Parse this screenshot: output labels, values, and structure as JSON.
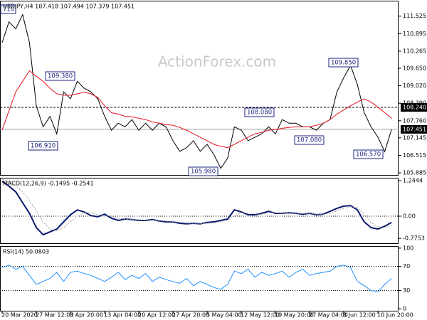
{
  "chart_data": [
    {
      "type": "line",
      "title": "USDJPY,H4  107.418 107.494 107.379 107.451",
      "watermark": "ActionForex.com",
      "categories": [
        "20 Mar 2020",
        null,
        null,
        null,
        null,
        "27 Mar 12:00",
        null,
        null,
        null,
        null,
        "3 Apr 20:00",
        null,
        null,
        null,
        null,
        "13 Apr 04:00",
        null,
        null,
        null,
        null,
        "20 Apr 12:00",
        null,
        null,
        null,
        null,
        "27 Apr 20:00",
        null,
        null,
        null,
        null,
        "5 May 04:00",
        null,
        null,
        null,
        null,
        "12 May 12:00",
        null,
        null,
        null,
        null,
        "19 May 20:00",
        null,
        null,
        null,
        null,
        "27 May 04:00",
        null,
        null,
        null,
        null,
        "3 Jun 12:00",
        null,
        null,
        null,
        null,
        "10 Jun 20:00",
        null,
        null
      ],
      "ylim": [
        105.81,
        112.08
      ],
      "yticks": [
        111.525,
        110.895,
        110.265,
        {
          "value": 109.65,
          "label": "109.650"
        },
        {
          "value": 109.02,
          "label": "109.020"
        },
        {
          "value": 108.39,
          "label": "108.390"
        },
        {
          "value": 107.76,
          "label": "107.760"
        },
        107.145,
        106.515,
        105.885
      ],
      "series": [
        {
          "color": "#000000",
          "values": [
            110.57,
            111.32,
            111.07,
            111.58,
            110.57,
            108.3,
            107.54,
            107.92,
            107.29,
            108.8,
            108.55,
            109.18,
            108.93,
            108.8,
            108.55,
            107.92,
            107.42,
            107.67,
            107.54,
            107.8,
            107.42,
            107.67,
            107.42,
            107.67,
            107.54,
            107.04,
            106.66,
            106.79,
            107.04,
            106.66,
            106.91,
            106.54,
            106.05,
            106.41,
            107.54,
            107.42,
            107.04,
            107.17,
            107.29,
            107.54,
            107.29,
            107.8,
            107.67,
            107.67,
            107.54,
            107.54,
            107.42,
            107.67,
            107.8,
            108.8,
            109.31,
            109.75,
            109.06,
            108.05,
            107.54,
            107.17,
            106.65,
            107.45
          ]
        },
        {
          "color": "#e8141e",
          "values": [
            107.42,
            108.12,
            108.8,
            109.18,
            109.56,
            109.36,
            109.18,
            108.93,
            108.73,
            108.68,
            108.68,
            108.73,
            108.78,
            108.73,
            108.6,
            108.3,
            108.05,
            108.0,
            107.92,
            107.9,
            107.85,
            107.8,
            107.72,
            107.67,
            107.62,
            107.6,
            107.52,
            107.42,
            107.29,
            107.17,
            107.04,
            106.91,
            106.84,
            106.79,
            106.91,
            107.04,
            107.17,
            107.29,
            107.34,
            107.42,
            107.44,
            107.49,
            107.52,
            107.54,
            107.54,
            107.54,
            107.6,
            107.67,
            107.8,
            108.0,
            108.15,
            108.3,
            108.43,
            108.55,
            108.43,
            108.25,
            108.05,
            107.85
          ]
        }
      ],
      "hlines": [
        {
          "value": 108.24,
          "label": "108.240",
          "style": "dashed"
        },
        {
          "value": 107.451,
          "label": "107.451",
          "style": "solid"
        }
      ],
      "annotations": [
        "710",
        "109.380",
        "106.910",
        "105.980",
        "108.080",
        "107.080",
        "109.850",
        "106.570"
      ]
    },
    {
      "type": "line",
      "title": "MACD(12,26,9) -0.1495 -0.2541",
      "ylim": [
        -0.946,
        1.344
      ],
      "yticks": [
        1.2444,
        {
          "value": 0,
          "label": "0.00"
        },
        -0.7753
      ],
      "series": [
        {
          "color": "#0a1a6e",
          "values": [
            1.22,
            1.05,
            0.85,
            0.47,
            0.1,
            -0.4,
            -0.65,
            -0.55,
            -0.45,
            -0.2,
            0.05,
            0.22,
            0.15,
            0.02,
            -0.02,
            0.07,
            -0.07,
            -0.15,
            -0.1,
            -0.12,
            -0.15,
            -0.15,
            -0.12,
            -0.17,
            -0.2,
            -0.2,
            -0.25,
            -0.27,
            -0.25,
            -0.27,
            -0.22,
            -0.2,
            -0.15,
            -0.1,
            0.22,
            0.15,
            0.05,
            0.05,
            0.1,
            0.17,
            0.1,
            0.1,
            0.12,
            0.1,
            0.07,
            0.1,
            0.05,
            0.07,
            0.17,
            0.27,
            0.35,
            0.37,
            0.22,
            -0.2,
            -0.4,
            -0.45,
            -0.35,
            -0.22
          ]
        },
        {
          "color": "#a0a0a0",
          "style": "dotted",
          "values": [
            1.3,
            1.2,
            1.05,
            0.85,
            0.55,
            0.2,
            -0.2,
            -0.45,
            -0.5,
            -0.4,
            -0.2,
            0.0,
            0.12,
            0.12,
            0.05,
            0.02,
            0.0,
            -0.07,
            -0.1,
            -0.12,
            -0.13,
            -0.14,
            -0.14,
            -0.15,
            -0.17,
            -0.19,
            -0.21,
            -0.24,
            -0.25,
            -0.26,
            -0.25,
            -0.23,
            -0.19,
            -0.14,
            0.0,
            0.12,
            0.12,
            0.08,
            0.07,
            0.12,
            0.12,
            0.1,
            0.1,
            0.1,
            0.09,
            0.09,
            0.07,
            0.07,
            0.1,
            0.18,
            0.27,
            0.33,
            0.3,
            0.05,
            -0.22,
            -0.38,
            -0.4,
            -0.3
          ]
        }
      ],
      "hlines": [
        {
          "value": 0,
          "style": "dotted"
        }
      ]
    },
    {
      "type": "line",
      "title": "RSI(14) 50.0803",
      "ylim": [
        -3.4,
        103.4
      ],
      "yticks": [
        100,
        70,
        30,
        0
      ],
      "series": [
        {
          "color": "#1e90ff",
          "values": [
            68,
            72,
            65,
            70,
            55,
            40,
            45,
            50,
            60,
            45,
            60,
            62,
            58,
            55,
            50,
            45,
            52,
            60,
            48,
            55,
            50,
            58,
            45,
            52,
            48,
            45,
            42,
            50,
            38,
            45,
            40,
            35,
            32,
            40,
            62,
            58,
            65,
            52,
            60,
            55,
            58,
            62,
            52,
            60,
            65,
            55,
            58,
            60,
            62,
            70,
            72,
            68,
            45,
            38,
            30,
            28,
            40,
            50
          ]
        }
      ],
      "hlines": [
        {
          "value": 70,
          "style": "dotted"
        },
        {
          "value": 30,
          "style": "dotted"
        }
      ]
    }
  ]
}
